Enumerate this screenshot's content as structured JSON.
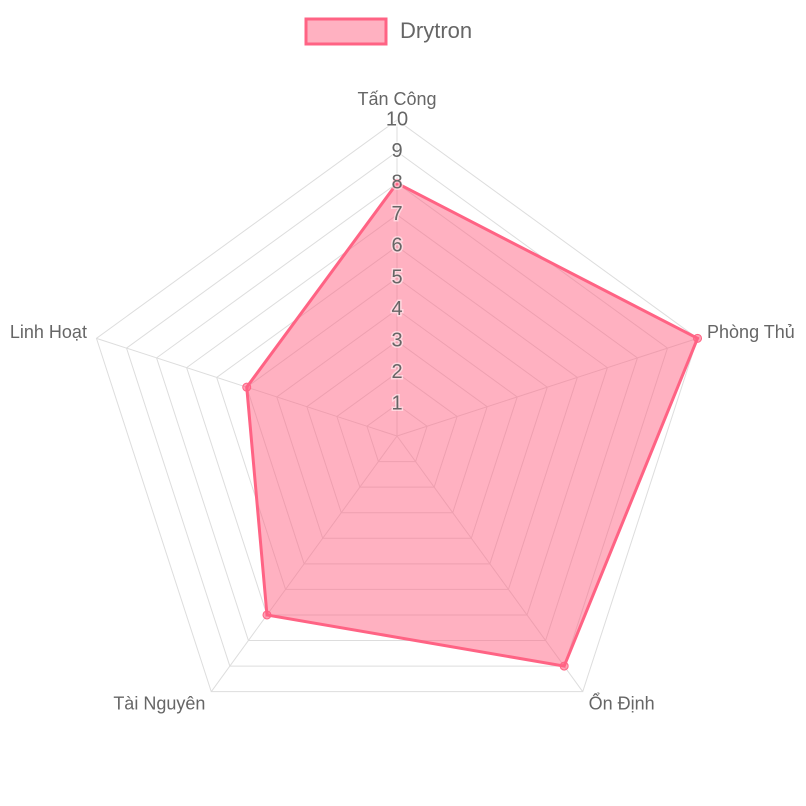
{
  "chart_data": {
    "type": "radar",
    "categories": [
      "Tấn Công",
      "Phòng Thủ",
      "Ổn Định",
      "Tài Nguyên",
      "Linh Hoạt"
    ],
    "series": [
      {
        "name": "Drytron",
        "color": "#ff6384",
        "values": [
          8,
          10,
          9,
          7,
          5
        ]
      }
    ],
    "ylim": [
      0,
      10
    ],
    "yticks": [
      1,
      2,
      3,
      4,
      5,
      6,
      7,
      8,
      9,
      10
    ],
    "grid": true,
    "legend": "top"
  }
}
